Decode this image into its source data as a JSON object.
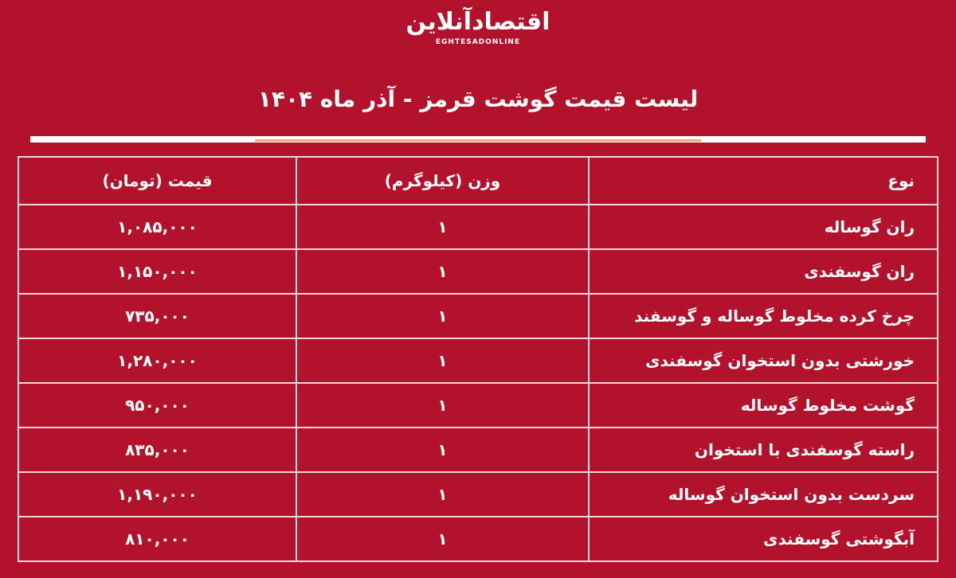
{
  "header": {
    "logo": "اقتصادآنلاین",
    "logo_latin": "EGHTESADONLINE",
    "title": "لیست قیمت گوشت قرمز - آذر ماه ۱۴۰۴"
  },
  "table": {
    "columns": [
      "نوع",
      "وزن (کیلوگرم)",
      "قیمت (تومان)"
    ],
    "rows": [
      [
        "ران گوساله",
        "۱",
        "۱,۰۸۵,۰۰۰"
      ],
      [
        "ران گوسفندی",
        "۱",
        "۱,۱۵۰,۰۰۰"
      ],
      [
        "چرخ کرده مخلوط گوساله و گوسفند",
        "۱",
        "۷۳۵,۰۰۰"
      ],
      [
        "خورشتی بدون استخوان گوسفندی",
        "۱",
        "۱,۲۸۰,۰۰۰"
      ],
      [
        "گوشت مخلوط گوساله",
        "۱",
        "۹۵۰,۰۰۰"
      ],
      [
        "راسته گوسفندی با استخوان",
        "۱",
        "۸۳۵,۰۰۰"
      ],
      [
        "سردست بدون استخوان گوساله",
        "۱",
        "۱,۱۹۰,۰۰۰"
      ],
      [
        "آبگوشتی گوسفندی",
        "۱",
        "۸۱۰,۰۰۰"
      ]
    ]
  }
}
